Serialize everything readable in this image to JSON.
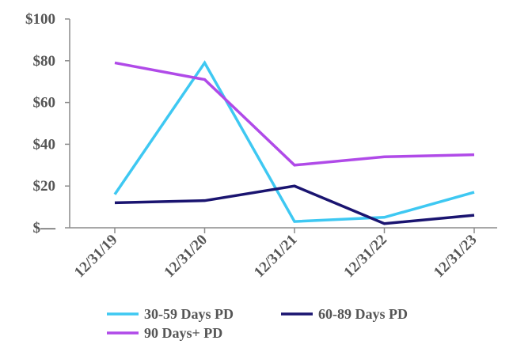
{
  "chart_data": {
    "type": "line",
    "title": "",
    "xlabel": "",
    "ylabel": "",
    "categories": [
      "12/31/19",
      "12/31/20",
      "12/31/21",
      "12/31/22",
      "12/31/23"
    ],
    "y_ticks": [
      {
        "value": 0,
        "label": "$—"
      },
      {
        "value": 20,
        "label": "$20"
      },
      {
        "value": 40,
        "label": "$40"
      },
      {
        "value": 60,
        "label": "$60"
      },
      {
        "value": 80,
        "label": "$80"
      },
      {
        "value": 100,
        "label": "$100"
      }
    ],
    "ylim": [
      0,
      100
    ],
    "grid": false,
    "legend_position": "bottom",
    "series": [
      {
        "name": "30-59 Days PD",
        "color": "#3ec8f2",
        "values": [
          16,
          79,
          3,
          5,
          17
        ]
      },
      {
        "name": "60-89 Days PD",
        "color": "#1a1470",
        "values": [
          12,
          13,
          20,
          2,
          6
        ]
      },
      {
        "name": "90 Days+ PD",
        "color": "#b04ae8",
        "values": [
          79,
          71,
          30,
          34,
          35
        ]
      }
    ]
  }
}
